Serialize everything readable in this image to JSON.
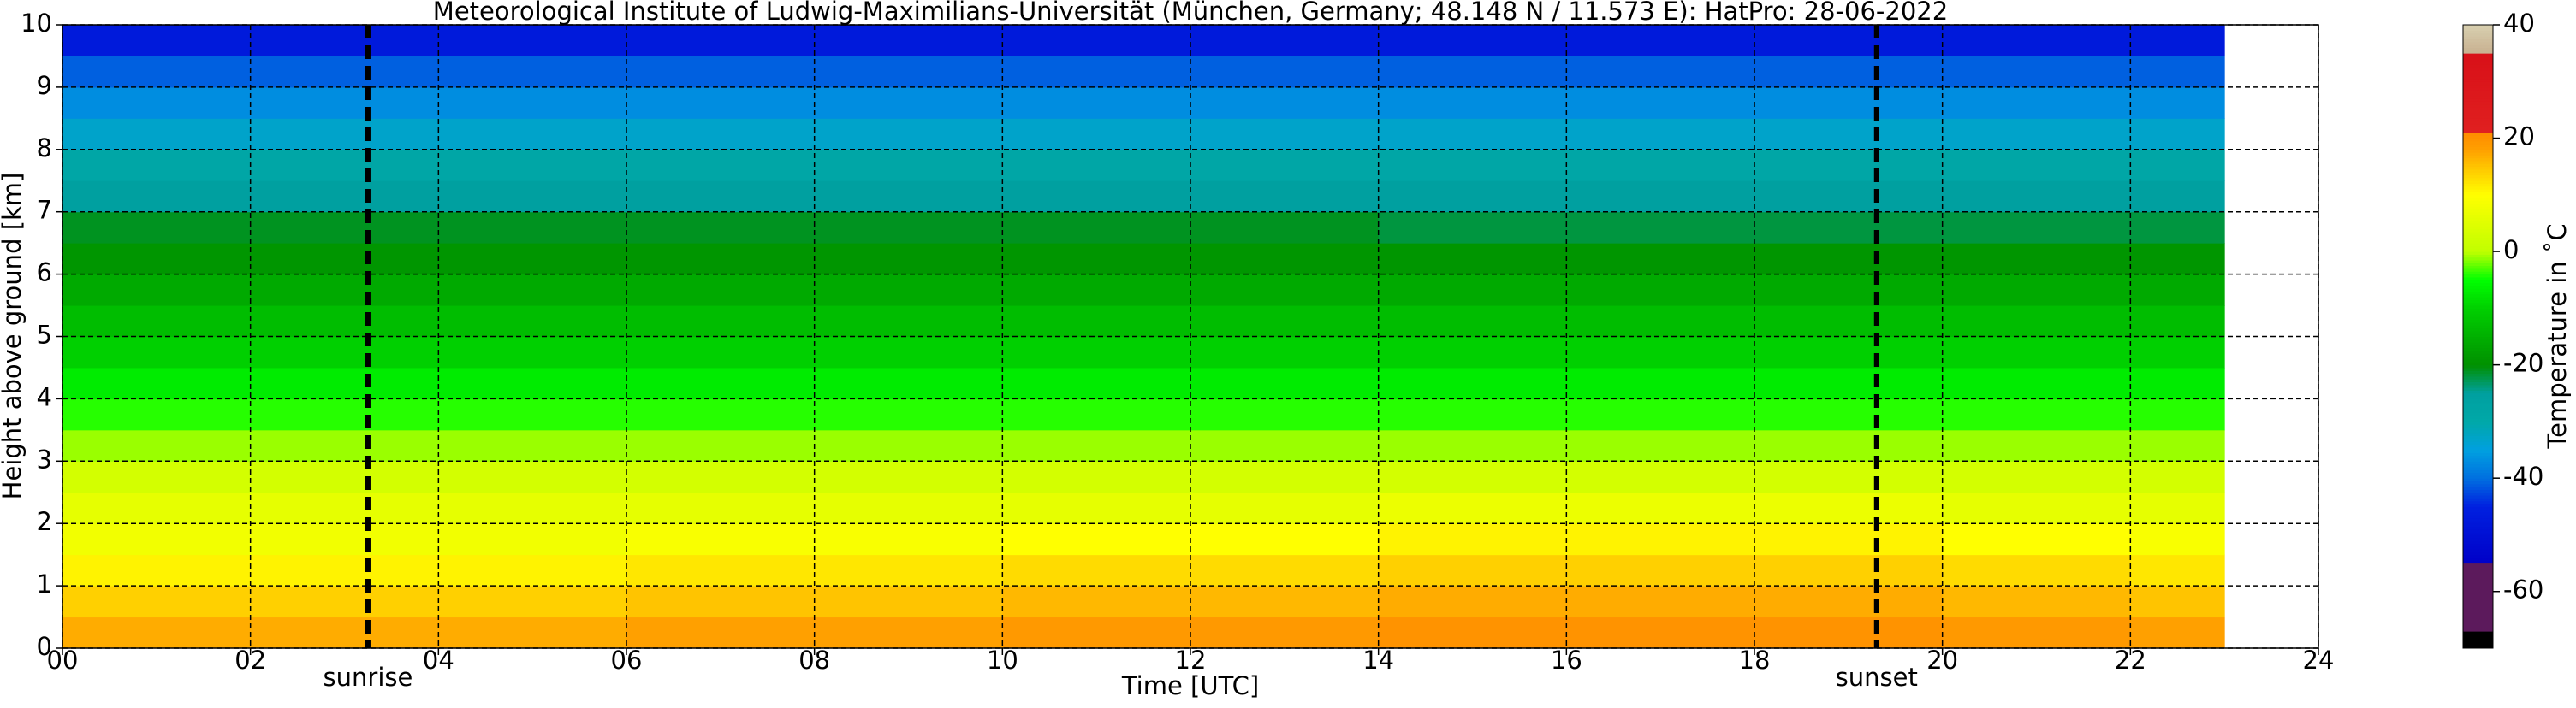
{
  "chart_data": {
    "type": "heatmap",
    "title": "Meteorological Institute of Ludwig-Maximilians-Universität (München, Germany; 48.148 N / 11.573 E):    HatPro: 28-06-2022",
    "x_label": "Time [UTC]",
    "y_label": "Height above ground [km]",
    "colorbar_label": "Temperature in ˚C",
    "x_edges": [
      0,
      2,
      4,
      6,
      8,
      10,
      12,
      14,
      16,
      18,
      20,
      22,
      23
    ],
    "y_edges": [
      0,
      0.5,
      1,
      1.5,
      2,
      2.5,
      3,
      3.5,
      4,
      4.5,
      5,
      5.5,
      6,
      6.5,
      7,
      7.5,
      8,
      8.5,
      9,
      9.5,
      10
    ],
    "values": [
      [
        17,
        17,
        17,
        18,
        18,
        19,
        19,
        20,
        20,
        20,
        19,
        18
      ],
      [
        14,
        14,
        14,
        15,
        15,
        16,
        16,
        17,
        17,
        17,
        16,
        15
      ],
      [
        11,
        11,
        11,
        12,
        12,
        13,
        13,
        14,
        14,
        14,
        13,
        12
      ],
      [
        8,
        8,
        8,
        9,
        9,
        10,
        10,
        11,
        11,
        11,
        10,
        9
      ],
      [
        6,
        6,
        6,
        6,
        6,
        6,
        6,
        7,
        7,
        7,
        6,
        6
      ],
      [
        3,
        3,
        3,
        3,
        3,
        3,
        3,
        3,
        3,
        3,
        3,
        3
      ],
      [
        -1,
        -1,
        -1,
        -1,
        -1,
        -1,
        -1,
        -1,
        -1,
        -1,
        -1,
        -1
      ],
      [
        -4,
        -4,
        -4,
        -4,
        -4,
        -4,
        -4,
        -4,
        -4,
        -4,
        -4,
        -4
      ],
      [
        -7,
        -7,
        -7,
        -7,
        -7,
        -7,
        -7,
        -7,
        -7,
        -7,
        -7,
        -7
      ],
      [
        -10,
        -10,
        -10,
        -10,
        -10,
        -10,
        -10,
        -10,
        -10,
        -10,
        -10,
        -10
      ],
      [
        -13,
        -13,
        -13,
        -13,
        -13,
        -13,
        -13,
        -13,
        -13,
        -13,
        -13,
        -13
      ],
      [
        -16,
        -16,
        -16,
        -16,
        -16,
        -16,
        -16,
        -16,
        -16,
        -16,
        -16,
        -16
      ],
      [
        -19,
        -19,
        -19,
        -19,
        -19,
        -19,
        -19,
        -19,
        -19,
        -19,
        -19,
        -19
      ],
      [
        -21,
        -21,
        -21,
        -21,
        -21,
        -21,
        -21,
        -22,
        -22,
        -22,
        -22,
        -22
      ],
      [
        -25,
        -25,
        -25,
        -25,
        -25,
        -25,
        -25,
        -25,
        -25,
        -25,
        -25,
        -25
      ],
      [
        -29,
        -29,
        -29,
        -29,
        -29,
        -29,
        -29,
        -29,
        -29,
        -29,
        -29,
        -29
      ],
      [
        -33,
        -33,
        -33,
        -33,
        -33,
        -33,
        -33,
        -33,
        -33,
        -33,
        -33,
        -33
      ],
      [
        -37,
        -37,
        -37,
        -37,
        -37,
        -37,
        -37,
        -37,
        -37,
        -37,
        -37,
        -37
      ],
      [
        -41,
        -41,
        -41,
        -41,
        -41,
        -41,
        -41,
        -41,
        -41,
        -41,
        -41,
        -41
      ],
      [
        -47,
        -47,
        -47,
        -47,
        -47,
        -47,
        -47,
        -47,
        -47,
        -47,
        -47,
        -47
      ]
    ],
    "xlim": [
      0,
      24
    ],
    "ylim": [
      0,
      10
    ],
    "xticks": [
      {
        "value": 0,
        "label": "00"
      },
      {
        "value": 2,
        "label": "02"
      },
      {
        "value": 4,
        "label": "04"
      },
      {
        "value": 6,
        "label": "06"
      },
      {
        "value": 8,
        "label": "08"
      },
      10,
      12,
      14,
      16,
      18,
      20,
      22,
      24
    ],
    "yticks": [
      0,
      1,
      2,
      3,
      4,
      5,
      6,
      7,
      8,
      9,
      10
    ],
    "grid": true,
    "vlines": [
      {
        "x": 3.25,
        "label": "sunrise"
      },
      {
        "x": 19.3,
        "label": "sunset"
      }
    ],
    "clim": [
      -70,
      40
    ],
    "cticks": [
      -60,
      -40,
      -20,
      0,
      20,
      40
    ],
    "colorscale": [
      [
        -70,
        "#000000"
      ],
      [
        -67,
        "#000000"
      ],
      [
        -67,
        "#5c1a5c"
      ],
      [
        -55,
        "#5c1a5c"
      ],
      [
        -55,
        "#0000c8"
      ],
      [
        -45,
        "#0020e0"
      ],
      [
        -40,
        "#0070e0"
      ],
      [
        -35,
        "#00a0e0"
      ],
      [
        -30,
        "#00a8a8"
      ],
      [
        -25,
        "#00a0a0"
      ],
      [
        -20,
        "#009000"
      ],
      [
        -10,
        "#00d000"
      ],
      [
        -5,
        "#00ff00"
      ],
      [
        0,
        "#c0ff00"
      ],
      [
        10,
        "#ffff00"
      ],
      [
        18,
        "#ffa000"
      ],
      [
        21,
        "#ff8c00"
      ],
      [
        21,
        "#e02020"
      ],
      [
        35,
        "#d81018"
      ],
      [
        35,
        "#c8b090"
      ],
      [
        40,
        "#d8d0b0"
      ]
    ]
  }
}
